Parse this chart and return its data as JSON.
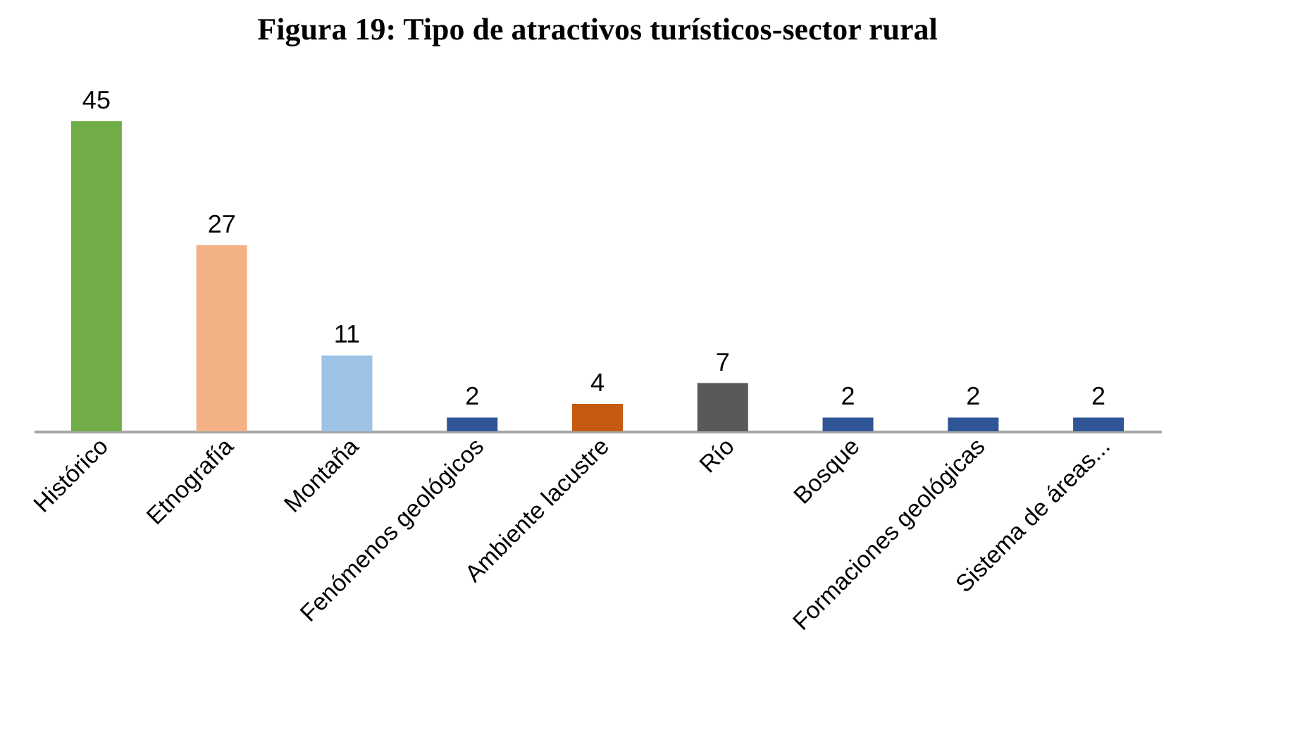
{
  "chart_data": {
    "type": "bar",
    "title": "Figura 19: Tipo de atractivos turísticos-sector rural",
    "categories": [
      "Histórico",
      "Etnografía",
      "Montaña",
      "Fenómenos geológicos",
      "Ambiente lacustre",
      "Río",
      "Bosque",
      "Formaciones geológicas",
      "Sistema de áreas..."
    ],
    "values": [
      45,
      27,
      11,
      2,
      4,
      7,
      2,
      2,
      2
    ],
    "colors": [
      "#70ad47",
      "#f4b183",
      "#9dc3e6",
      "#2f5597",
      "#c55a11",
      "#595959",
      "#2f5597",
      "#2f5597",
      "#2f5597"
    ],
    "data_labels": true
  }
}
